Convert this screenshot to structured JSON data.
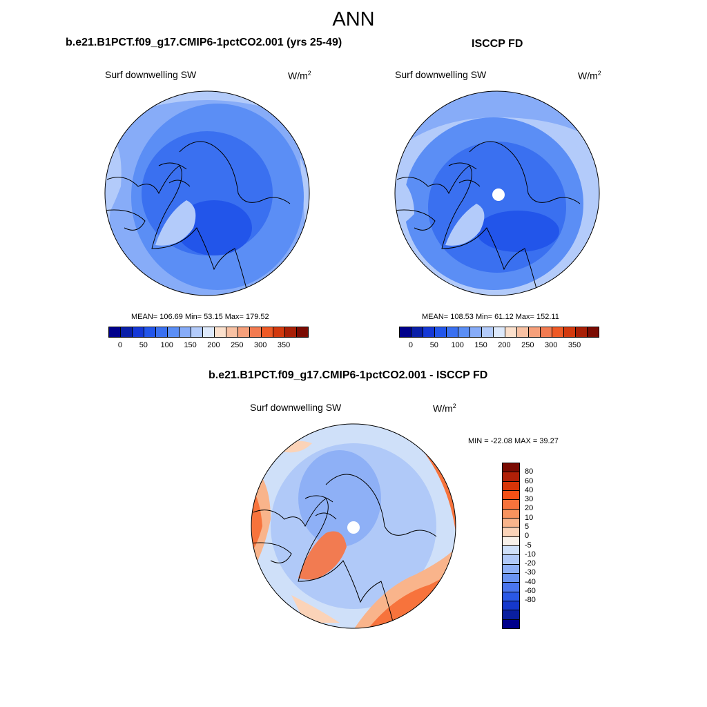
{
  "main_title": "ANN",
  "panels": [
    {
      "title": "b.e21.B1PCT.f09_g17.CMIP6-1pctCO2.001 (yrs 25-49)",
      "subtitle": "Surf downwelling SW",
      "units_base": "W/m",
      "units_exp": "2",
      "stats": "MEAN= 106.69  Min=  53.15  Max= 179.52"
    },
    {
      "title": "ISCCP FD",
      "subtitle": "Surf downwelling SW",
      "units_base": "W/m",
      "units_exp": "2",
      "stats": "MEAN= 108.53  Min=  61.12  Max= 152.11"
    },
    {
      "title": "b.e21.B1PCT.f09_g17.CMIP6-1pctCO2.001 - ISCCP FD",
      "subtitle": "Surf downwelling SW",
      "units_base": "W/m",
      "units_exp": "2",
      "stats": "MIN = -22.08 MAX =  39.27"
    }
  ],
  "abs_colorbar": {
    "colors": [
      "#00008b",
      "#0a1fa8",
      "#1538d6",
      "#2255ea",
      "#3a70f0",
      "#5b8ef5",
      "#87acf8",
      "#b3cbfa",
      "#dde9fb",
      "#fbe0cc",
      "#f8c1a3",
      "#f6a07b",
      "#f27b51",
      "#ee5a26",
      "#d2390e",
      "#a81f06",
      "#7a0b02"
    ],
    "labels": [
      "0",
      "50",
      "100",
      "150",
      "200",
      "250",
      "300",
      "350"
    ]
  },
  "diff_colorbar": {
    "colors": [
      "#7a0b02",
      "#b02008",
      "#d83508",
      "#f55016",
      "#f7733c",
      "#f8935e",
      "#f9b48b",
      "#fbd3b8",
      "#f8f1ea",
      "#cfe0f9",
      "#b0c9f8",
      "#8eb0f6",
      "#6a94f2",
      "#4a75ee",
      "#2a58e6",
      "#1538cc",
      "#0a1fa0",
      "#00008b"
    ],
    "labels": [
      "80",
      "60",
      "40",
      "30",
      "20",
      "10",
      "5",
      "0",
      "-5",
      "-10",
      "-20",
      "-30",
      "-40",
      "-60",
      "-80"
    ]
  }
}
